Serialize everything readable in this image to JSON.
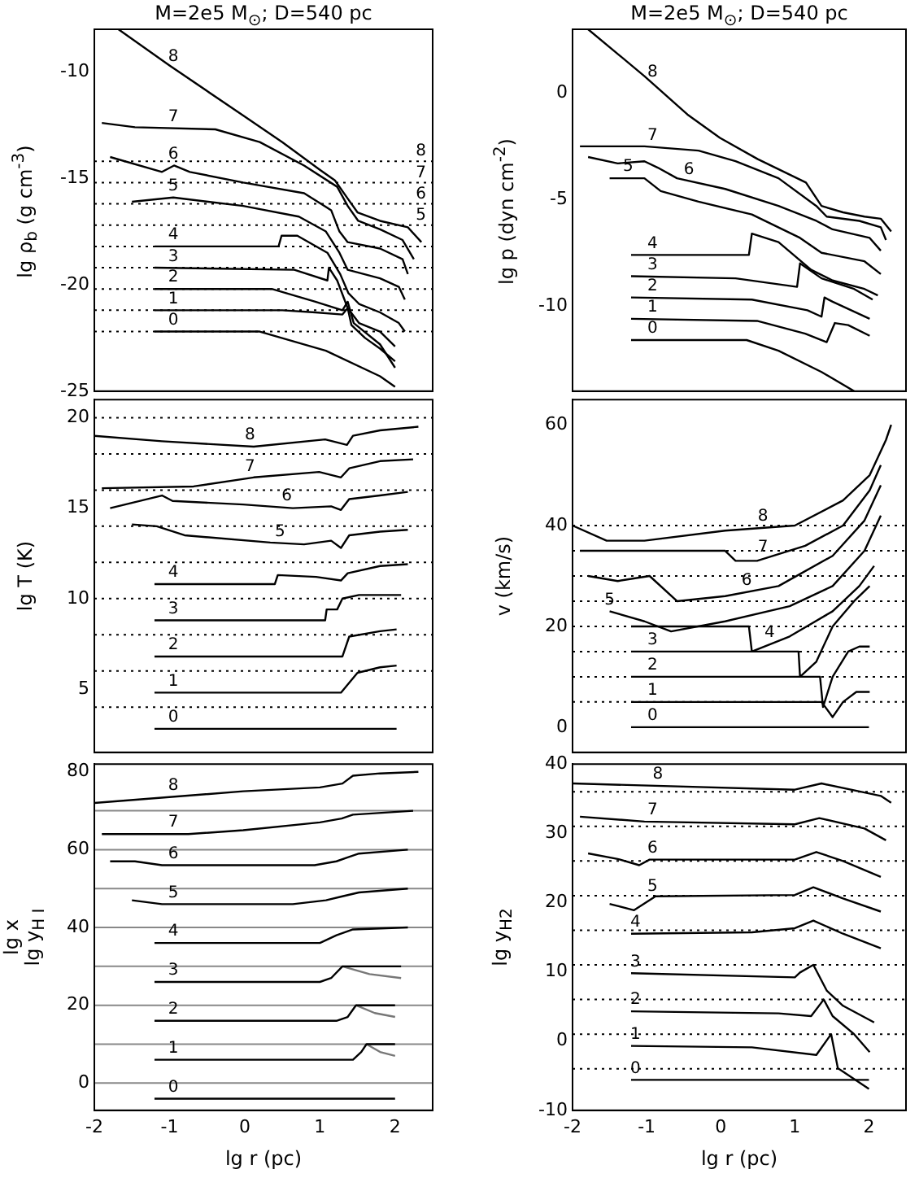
{
  "chart_data": [
    {
      "type": "line",
      "title": "M=2e5 M$_{⊙}$; D=540 pc",
      "ylabel": "lg ρ$_{b}$ (g cm$^{-3}$)",
      "xlim": [
        -2,
        2.5
      ],
      "xticks": [
        -2,
        -1,
        0,
        1,
        2
      ],
      "ylim": [
        -25,
        -8
      ],
      "yticks": [
        -25,
        -20,
        -15,
        -10
      ],
      "tick_labels": "y",
      "series": [
        {
          "name": "8",
          "color": "#000000",
          "x": [
            -1.68,
            -1,
            0,
            0.5,
            1,
            1.2,
            1.38,
            1.5,
            1.8,
            2.17,
            2.35
          ],
          "values": [
            -8.0,
            -9.7,
            -12.1,
            -13.3,
            -14.6,
            -15.1,
            -16.0,
            -16.6,
            -17.0,
            -17.3,
            -18.0
          ]
        },
        {
          "name": "7",
          "color": "#000000",
          "x": [
            -1.9,
            -1.46,
            -0.39,
            0.2,
            0.79,
            1.23,
            1.37,
            1.51,
            1.8,
            2.1,
            2.25
          ],
          "values": [
            -12.4,
            -12.6,
            -12.7,
            -13.3,
            -14.4,
            -15.4,
            -16.3,
            -17.0,
            -17.4,
            -17.9,
            -18.8
          ]
        },
        {
          "name": "6",
          "color": "#000000",
          "x": [
            -1.79,
            -1.1,
            -0.94,
            -0.73,
            -0.02,
            0.79,
            1.15,
            1.26,
            1.37,
            1.8,
            2.1,
            2.17
          ],
          "values": [
            -14.0,
            -14.7,
            -14.4,
            -14.7,
            -15.2,
            -15.7,
            -16.5,
            -17.5,
            -18.0,
            -18.3,
            -18.8,
            -19.5
          ]
        },
        {
          "name": "5",
          "color": "#000000",
          "x": [
            -1.5,
            -0.95,
            -0.02,
            0.72,
            1.08,
            1.26,
            1.37,
            1.8,
            2.05,
            2.13
          ],
          "values": [
            -16.1,
            -15.9,
            -16.3,
            -16.8,
            -17.5,
            -18.5,
            -19.3,
            -19.7,
            -20.1,
            -20.7
          ]
        },
        {
          "name": "4",
          "color": "#000000",
          "x": [
            -1.2,
            0.45,
            0.49,
            0.7,
            1.1,
            1.27,
            1.38,
            1.52,
            1.8,
            2.05,
            2.13
          ],
          "values": [
            -18.2,
            -18.2,
            -17.7,
            -17.7,
            -18.5,
            -19.5,
            -20.4,
            -20.9,
            -21.3,
            -21.8,
            -22.2
          ]
        },
        {
          "name": "3",
          "color": "#000000",
          "x": [
            -1.2,
            0.66,
            1.1,
            1.12,
            1.23,
            1.37,
            1.52,
            1.8,
            2.0
          ],
          "values": [
            -19.2,
            -19.3,
            -19.8,
            -19.2,
            -19.8,
            -21.1,
            -21.8,
            -22.2,
            -22.9
          ]
        },
        {
          "name": "2",
          "color": "#000000",
          "x": [
            -1.2,
            0.36,
            0.94,
            1.3,
            1.37,
            1.45,
            1.8,
            2.0
          ],
          "values": [
            -20.2,
            -20.2,
            -20.8,
            -21.2,
            -20.8,
            -21.8,
            -22.8,
            -23.9
          ]
        },
        {
          "name": "1",
          "color": "#000000",
          "x": [
            -1.2,
            0.5,
            0.94,
            1.3,
            1.37,
            1.42,
            1.6,
            1.8,
            2.0
          ],
          "values": [
            -21.2,
            -21.2,
            -21.3,
            -21.4,
            -21.1,
            -21.9,
            -22.5,
            -23.0,
            -23.6
          ]
        },
        {
          "name": "0",
          "color": "#000000",
          "x": [
            -1.2,
            0.2,
            1.08,
            1.8,
            2.0
          ],
          "values": [
            -22.2,
            -22.2,
            -23.1,
            -24.3,
            -24.8
          ]
        }
      ],
      "ref_lines": [
        {
          "axis": "y",
          "value": -14.2,
          "color": "#000000",
          "line_style": "dotted"
        },
        {
          "axis": "y",
          "value": -15.2,
          "color": "#000000",
          "line_style": "dotted"
        },
        {
          "axis": "y",
          "value": -16.2,
          "color": "#000000",
          "line_style": "dotted"
        },
        {
          "axis": "y",
          "value": -17.2,
          "color": "#000000",
          "line_style": "dotted"
        },
        {
          "axis": "y",
          "value": -18.2,
          "color": "#000000",
          "line_style": "dotted"
        },
        {
          "axis": "y",
          "value": -19.2,
          "color": "#000000",
          "line_style": "dotted"
        },
        {
          "axis": "y",
          "value": -20.2,
          "color": "#000000",
          "line_style": "dotted"
        },
        {
          "axis": "y",
          "value": -21.2,
          "color": "#000000",
          "line_style": "dotted"
        },
        {
          "axis": "y",
          "value": -22.2,
          "color": "#000000",
          "line_style": "dotted"
        }
      ],
      "annotations": [
        "8",
        "7",
        "6",
        "5"
      ]
    },
    {
      "type": "line",
      "title": "M=2e5 M$_{⊙}$; D=540 pc",
      "ylabel": "lg p (dyn cm$^{-2}$)",
      "xlim": [
        -2,
        2.5
      ],
      "xticks": [
        -2,
        -1,
        0,
        1,
        2
      ],
      "ylim": [
        -14,
        3
      ],
      "yticks": [
        -10,
        -5,
        0
      ],
      "tick_labels": "y",
      "series": [
        {
          "name": "8",
          "color": "#000000",
          "x": [
            -1.79,
            -1.03,
            -0.45,
            -0.01,
            0.5,
            1.15,
            1.36,
            1.65,
            1.94,
            2.16,
            2.3
          ],
          "values": [
            3.0,
            0.8,
            -1.0,
            -2.1,
            -3.1,
            -4.2,
            -5.3,
            -5.6,
            -5.8,
            -5.9,
            -6.5
          ]
        },
        {
          "name": "7",
          "color": "#000000",
          "x": [
            -1.9,
            -1.03,
            -0.3,
            0.2,
            0.78,
            1.29,
            1.43,
            1.87,
            2.16,
            2.23
          ],
          "values": [
            -2.5,
            -2.5,
            -2.7,
            -3.2,
            -4.0,
            -5.3,
            -5.8,
            -6.0,
            -6.3,
            -6.9
          ]
        },
        {
          "name": "6",
          "color": "#000000",
          "x": [
            -1.79,
            -1.39,
            -1.03,
            -0.85,
            -0.59,
            0.06,
            0.78,
            1.29,
            1.51,
            2.01,
            2.16
          ],
          "values": [
            -3.0,
            -3.3,
            -3.2,
            -3.5,
            -4.0,
            -4.5,
            -5.3,
            -6.0,
            -6.4,
            -6.8,
            -7.4
          ]
        },
        {
          "name": "5",
          "color": "#000000",
          "x": [
            -1.5,
            -1.03,
            -0.81,
            -0.3,
            0.42,
            1.07,
            1.36,
            1.94,
            2.16
          ],
          "values": [
            -4.0,
            -4.0,
            -4.6,
            -5.1,
            -5.7,
            -6.8,
            -7.5,
            -7.9,
            -8.5
          ]
        },
        {
          "name": "4",
          "color": "#000000",
          "x": [
            -1.21,
            0.38,
            0.42,
            0.78,
            1.22,
            1.51,
            1.94,
            2.12
          ],
          "values": [
            -7.6,
            -7.6,
            -6.6,
            -7.0,
            -8.3,
            -8.8,
            -9.2,
            -9.5
          ]
        },
        {
          "name": "3",
          "color": "#000000",
          "x": [
            -1.21,
            0.2,
            1.03,
            1.07,
            1.36,
            1.8,
            2.05
          ],
          "values": [
            -8.6,
            -8.7,
            -9.1,
            -8.0,
            -8.7,
            -9.2,
            -9.7
          ]
        },
        {
          "name": "2",
          "color": "#000000",
          "x": [
            -1.21,
            0.42,
            1.17,
            1.36,
            1.4,
            1.51,
            2.01
          ],
          "values": [
            -9.6,
            -9.7,
            -10.2,
            -10.5,
            -9.6,
            -9.8,
            -10.6
          ]
        },
        {
          "name": "1",
          "color": "#000000",
          "x": [
            -1.21,
            0.49,
            1.14,
            1.43,
            1.54,
            1.72,
            2.01
          ],
          "values": [
            -10.6,
            -10.7,
            -11.3,
            -11.7,
            -10.8,
            -10.9,
            -11.4
          ]
        },
        {
          "name": "0",
          "color": "#000000",
          "x": [
            -1.21,
            0.35,
            0.78,
            1.36,
            1.8
          ],
          "values": [
            -11.6,
            -11.6,
            -12.1,
            -13.1,
            -14.0
          ]
        }
      ]
    },
    {
      "type": "line",
      "ylabel": "lg T (K)",
      "xlim": [
        -2,
        2.5
      ],
      "xticks": [
        -2,
        -1,
        0,
        1,
        2
      ],
      "ylim": [
        1.5,
        21
      ],
      "yticks": [
        5,
        10,
        15,
        20
      ],
      "tick_labels": "y",
      "series": [
        {
          "name": "8",
          "color": "#000000",
          "x": [
            -2,
            -1.1,
            0.12,
            1.07,
            1.36,
            1.44,
            1.8,
            2.31
          ],
          "values": [
            19.0,
            18.7,
            18.4,
            18.8,
            18.5,
            19.0,
            19.3,
            19.5
          ]
        },
        {
          "name": "7",
          "color": "#000000",
          "x": [
            -1.9,
            -0.68,
            0.12,
            0.99,
            1.28,
            1.39,
            1.8,
            2.24
          ],
          "values": [
            16.1,
            16.2,
            16.7,
            17.0,
            16.7,
            17.2,
            17.6,
            17.7
          ]
        },
        {
          "name": "6",
          "color": "#000000",
          "x": [
            -1.79,
            -1.1,
            -0.96,
            -0.02,
            0.64,
            1.15,
            1.28,
            1.39,
            1.8,
            2.17
          ],
          "values": [
            15.0,
            15.7,
            15.4,
            15.2,
            15.0,
            15.1,
            14.9,
            15.5,
            15.7,
            15.9
          ]
        },
        {
          "name": "5",
          "color": "#000000",
          "x": [
            -1.5,
            -1.17,
            -0.8,
            0.34,
            0.79,
            1.15,
            1.28,
            1.39,
            1.8,
            2.17
          ],
          "values": [
            14.1,
            14.0,
            13.5,
            13.1,
            13.0,
            13.2,
            12.8,
            13.5,
            13.7,
            13.8
          ]
        },
        {
          "name": "4",
          "color": "#000000",
          "x": [
            -1.2,
            0.4,
            0.44,
            0.95,
            1.28,
            1.37,
            1.8,
            2.17
          ],
          "values": [
            10.8,
            10.8,
            11.3,
            11.2,
            11.0,
            11.4,
            11.8,
            11.9
          ]
        },
        {
          "name": "3",
          "color": "#000000",
          "x": [
            -1.2,
            1.07,
            1.09,
            1.23,
            1.3,
            1.52,
            2.08
          ],
          "values": [
            8.8,
            8.8,
            9.4,
            9.4,
            10.0,
            10.2,
            10.2
          ]
        },
        {
          "name": "2",
          "color": "#000000",
          "x": [
            -1.2,
            1.3,
            1.39,
            1.8,
            2.02
          ],
          "values": [
            6.8,
            6.8,
            7.9,
            8.2,
            8.3
          ]
        },
        {
          "name": "1",
          "color": "#000000",
          "x": [
            -1.2,
            1.28,
            1.5,
            1.8,
            2.02
          ],
          "values": [
            4.8,
            4.8,
            5.9,
            6.2,
            6.3
          ]
        },
        {
          "name": "0",
          "color": "#000000",
          "x": [
            -1.2,
            2.02
          ],
          "values": [
            2.8,
            2.8
          ]
        }
      ],
      "ref_lines": [
        {
          "axis": "y",
          "value": 20,
          "color": "#000000",
          "line_style": "dotted"
        },
        {
          "axis": "y",
          "value": 18,
          "color": "#000000",
          "line_style": "dotted"
        },
        {
          "axis": "y",
          "value": 16,
          "color": "#000000",
          "line_style": "dotted"
        },
        {
          "axis": "y",
          "value": 14,
          "color": "#000000",
          "line_style": "dotted"
        },
        {
          "axis": "y",
          "value": 12,
          "color": "#000000",
          "line_style": "dotted"
        },
        {
          "axis": "y",
          "value": 10,
          "color": "#000000",
          "line_style": "dotted"
        },
        {
          "axis": "y",
          "value": 8,
          "color": "#000000",
          "line_style": "dotted"
        },
        {
          "axis": "y",
          "value": 6,
          "color": "#000000",
          "line_style": "dotted"
        },
        {
          "axis": "y",
          "value": 4,
          "color": "#000000",
          "line_style": "dotted"
        }
      ]
    },
    {
      "type": "line",
      "ylabel": "v (km/s)",
      "xlim": [
        -2,
        2.5
      ],
      "xticks": [
        -2,
        -1,
        0,
        1,
        2
      ],
      "ylim": [
        -5,
        65
      ],
      "yticks": [
        0,
        20,
        40,
        60
      ],
      "tick_labels": "y",
      "series": [
        {
          "name": "8",
          "color": "#000000",
          "x": [
            -2,
            -1.54,
            -1.03,
            0.06,
            1.0,
            1.65,
            2.01,
            2.23,
            2.3
          ],
          "values": [
            40,
            37,
            37,
            39,
            40,
            45,
            50,
            57,
            60
          ]
        },
        {
          "name": "7",
          "color": "#000000",
          "x": [
            -1.9,
            0.06,
            0.2,
            0.49,
            1.14,
            1.65,
            2.01,
            2.16
          ],
          "values": [
            35,
            35,
            33,
            33,
            36,
            40,
            47,
            52
          ]
        },
        {
          "name": "6",
          "color": "#000000",
          "x": [
            -1.79,
            -1.39,
            -0.96,
            -0.59,
            0.06,
            0.78,
            1.51,
            1.94,
            2.16
          ],
          "values": [
            30,
            29,
            30,
            25,
            26,
            28,
            34,
            41,
            48
          ]
        },
        {
          "name": "5",
          "color": "#000000",
          "x": [
            -1.5,
            -1.03,
            -0.67,
            0.06,
            0.93,
            1.51,
            1.94,
            2.16
          ],
          "values": [
            23,
            21,
            19,
            21,
            24,
            28,
            35,
            42
          ]
        },
        {
          "name": "4",
          "color": "#000000",
          "x": [
            -1.21,
            0.38,
            0.42,
            0.93,
            1.51,
            1.87,
            2.07
          ],
          "values": [
            20,
            20,
            15,
            18,
            23,
            28,
            32
          ]
        },
        {
          "name": "3",
          "color": "#000000",
          "x": [
            -1.21,
            1.05,
            1.07,
            1.29,
            1.51,
            1.8,
            2.01
          ],
          "values": [
            15,
            15,
            10,
            13,
            20,
            25,
            28
          ]
        },
        {
          "name": "2",
          "color": "#000000",
          "x": [
            -1.21,
            1.34,
            1.38,
            1.51,
            1.72,
            1.87,
            2.01
          ],
          "values": [
            10,
            10,
            4,
            10,
            15,
            16,
            16
          ]
        },
        {
          "name": "1",
          "color": "#000000",
          "x": [
            -1.21,
            1.36,
            1.51,
            1.65,
            1.83,
            2.01
          ],
          "values": [
            5,
            5,
            2,
            5,
            7,
            7
          ]
        },
        {
          "name": "0",
          "color": "#000000",
          "x": [
            -1.21,
            2.0
          ],
          "values": [
            0,
            0
          ]
        }
      ],
      "ref_lines": [
        {
          "axis": "y",
          "value": 40,
          "color": "#000000",
          "line_style": "dotted"
        },
        {
          "axis": "y",
          "value": 35,
          "color": "#000000",
          "line_style": "dotted"
        },
        {
          "axis": "y",
          "value": 30,
          "color": "#000000",
          "line_style": "dotted"
        },
        {
          "axis": "y",
          "value": 25,
          "color": "#000000",
          "line_style": "dotted"
        },
        {
          "axis": "y",
          "value": 20,
          "color": "#000000",
          "line_style": "dotted"
        },
        {
          "axis": "y",
          "value": 15,
          "color": "#000000",
          "line_style": "dotted"
        },
        {
          "axis": "y",
          "value": 10,
          "color": "#000000",
          "line_style": "dotted"
        },
        {
          "axis": "y",
          "value": 5,
          "color": "#000000",
          "line_style": "dotted"
        }
      ]
    },
    {
      "type": "line",
      "ylabel": "lg x\nlg y$_{H I}$",
      "xlabel": "lg r (pc)",
      "xlim": [
        -2,
        2.5
      ],
      "xticks": [
        -2,
        -1,
        0,
        1,
        2
      ],
      "ylim": [
        -7,
        82
      ],
      "yticks": [
        0,
        20,
        40,
        60,
        80
      ],
      "series": [
        {
          "name": "8",
          "color": "#000000",
          "x": [
            -2,
            -0.02,
            1.0,
            1.3,
            1.44,
            1.8,
            2.31
          ],
          "values": [
            72,
            75,
            76,
            77,
            79,
            79.6,
            80
          ]
        },
        {
          "name": "7",
          "color": "#000000",
          "x": [
            -1.9,
            -0.75,
            -0.02,
            1.0,
            1.29,
            1.44,
            2.24
          ],
          "values": [
            64,
            64,
            65,
            67,
            68,
            69,
            70
          ]
        },
        {
          "name": "6",
          "color": "#000000",
          "x": [
            -1.79,
            -1.46,
            -1.1,
            0.93,
            1.22,
            1.37,
            1.52,
            2.17
          ],
          "values": [
            57,
            57,
            56,
            56,
            57,
            58,
            59,
            60
          ]
        },
        {
          "name": "5",
          "color": "#000000",
          "x": [
            -1.5,
            -1.1,
            0.64,
            1.08,
            1.3,
            1.52,
            2.17
          ],
          "values": [
            47,
            46,
            46,
            47,
            48,
            49,
            50
          ]
        },
        {
          "name": "4",
          "color": "#000000",
          "x": [
            -1.2,
            0.56,
            1.0,
            1.22,
            1.44,
            2.17
          ],
          "values": [
            36,
            36,
            36,
            38,
            39.5,
            40
          ]
        },
        {
          "name": "3",
          "color": "#000000",
          "x": [
            -1.2,
            1.0,
            1.15,
            1.3,
            1.44,
            2.08
          ],
          "values": [
            26,
            26,
            27,
            30,
            30,
            30
          ]
        },
        {
          "color": "#777777",
          "x": [
            1.3,
            1.66,
            2.08
          ],
          "values": [
            30,
            28,
            27
          ]
        },
        {
          "name": "2",
          "color": "#000000",
          "x": [
            -1.2,
            1.22,
            1.37,
            1.48,
            2.0
          ],
          "values": [
            16,
            16,
            17,
            20,
            20
          ]
        },
        {
          "color": "#777777",
          "x": [
            1.48,
            1.73,
            2.0
          ],
          "values": [
            20,
            18,
            17
          ]
        },
        {
          "name": "1",
          "color": "#000000",
          "x": [
            -1.2,
            1.44,
            1.55,
            1.62,
            2.0
          ],
          "values": [
            6,
            6,
            8,
            10,
            10
          ]
        },
        {
          "color": "#777777",
          "x": [
            1.62,
            1.8,
            2.0
          ],
          "values": [
            10,
            8,
            7
          ]
        },
        {
          "name": "0",
          "color": "#000000",
          "x": [
            -1.2,
            2.0
          ],
          "values": [
            -4,
            -4
          ]
        }
      ],
      "ref_lines": [
        {
          "axis": "y",
          "value": 70,
          "color": "#888888",
          "line_style": "solid"
        },
        {
          "axis": "y",
          "value": 60,
          "color": "#888888",
          "line_style": "solid"
        },
        {
          "axis": "y",
          "value": 50,
          "color": "#888888",
          "line_style": "solid"
        },
        {
          "axis": "y",
          "value": 40,
          "color": "#888888",
          "line_style": "solid"
        },
        {
          "axis": "y",
          "value": 30,
          "color": "#888888",
          "line_style": "solid"
        },
        {
          "axis": "y",
          "value": 20,
          "color": "#888888",
          "line_style": "solid"
        },
        {
          "axis": "y",
          "value": 10,
          "color": "#888888",
          "line_style": "solid"
        },
        {
          "axis": "y",
          "value": 0,
          "color": "#888888",
          "line_style": "solid"
        }
      ]
    },
    {
      "type": "line",
      "ylabel": "lg y$_{H2}$",
      "xlabel": "lg r (pc)",
      "xlim": [
        -2,
        2.5
      ],
      "xticks": [
        -2,
        -1,
        0,
        1,
        2
      ],
      "ylim": [
        -10,
        40
      ],
      "yticks": [
        -10,
        0,
        10,
        20,
        30,
        40
      ],
      "series": [
        {
          "name": "8",
          "color": "#000000",
          "x": [
            -2,
            1.0,
            1.36,
            1.94,
            2.16,
            2.3
          ],
          "values": [
            37.2,
            36.3,
            37.2,
            35.9,
            35.4,
            34.4
          ]
        },
        {
          "name": "7",
          "color": "#000000",
          "x": [
            -1.9,
            -1.03,
            1.0,
            1.33,
            1.94,
            2.23
          ],
          "values": [
            32.4,
            31.7,
            31.3,
            32.2,
            30.7,
            29.0
          ]
        },
        {
          "name": "6",
          "color": "#000000",
          "x": [
            -1.79,
            -1.39,
            -1.1,
            -0.96,
            1.0,
            1.29,
            1.65,
            2.16
          ],
          "values": [
            27.1,
            26.3,
            25.4,
            26.2,
            26.2,
            27.3,
            26.0,
            23.7
          ]
        },
        {
          "name": "5",
          "color": "#000000",
          "x": [
            -1.5,
            -1.17,
            -0.88,
            1.0,
            1.25,
            1.65,
            2.16
          ],
          "values": [
            19.8,
            18.9,
            20.9,
            21.1,
            22.2,
            20.6,
            18.7
          ]
        },
        {
          "name": "4",
          "color": "#000000",
          "x": [
            -1.21,
            0.42,
            1.0,
            1.25,
            1.65,
            2.16
          ],
          "values": [
            15.5,
            15.7,
            16.3,
            17.4,
            15.5,
            13.4
          ]
        },
        {
          "name": "3",
          "color": "#000000",
          "x": [
            -1.21,
            1.0,
            1.07,
            1.25,
            1.43,
            1.65,
            2.07
          ],
          "values": [
            9.8,
            9.2,
            9.9,
            11.0,
            7.3,
            5.1,
            2.7
          ]
        },
        {
          "name": "2",
          "color": "#000000",
          "x": [
            -1.21,
            0.78,
            1.22,
            1.39,
            1.51,
            1.8,
            2.01
          ],
          "values": [
            4.3,
            4.0,
            3.6,
            6.0,
            3.6,
            1.0,
            -1.6
          ]
        },
        {
          "name": "1",
          "color": "#000000",
          "x": [
            -1.21,
            0.42,
            1.29,
            1.49,
            1.58,
            2.0
          ],
          "values": [
            -0.7,
            -0.9,
            -2.0,
            1.0,
            -3.9,
            -6.9
          ]
        },
        {
          "name": "0",
          "color": "#000000",
          "x": [
            -1.21,
            2.0
          ],
          "values": [
            -5.6,
            -5.6
          ]
        }
      ],
      "ref_lines": [
        {
          "axis": "y",
          "value": 36,
          "color": "#000000",
          "line_style": "dotted"
        },
        {
          "axis": "y",
          "value": 31,
          "color": "#000000",
          "line_style": "dotted"
        },
        {
          "axis": "y",
          "value": 26,
          "color": "#000000",
          "line_style": "dotted"
        },
        {
          "axis": "y",
          "value": 21,
          "color": "#000000",
          "line_style": "dotted"
        },
        {
          "axis": "y",
          "value": 16,
          "color": "#000000",
          "line_style": "dotted"
        },
        {
          "axis": "y",
          "value": 11,
          "color": "#000000",
          "line_style": "dotted"
        },
        {
          "axis": "y",
          "value": 6,
          "color": "#000000",
          "line_style": "dotted"
        },
        {
          "axis": "y",
          "value": 1,
          "color": "#000000",
          "line_style": "dotted"
        },
        {
          "axis": "y",
          "value": -4,
          "color": "#000000",
          "line_style": "dotted"
        }
      ]
    }
  ]
}
